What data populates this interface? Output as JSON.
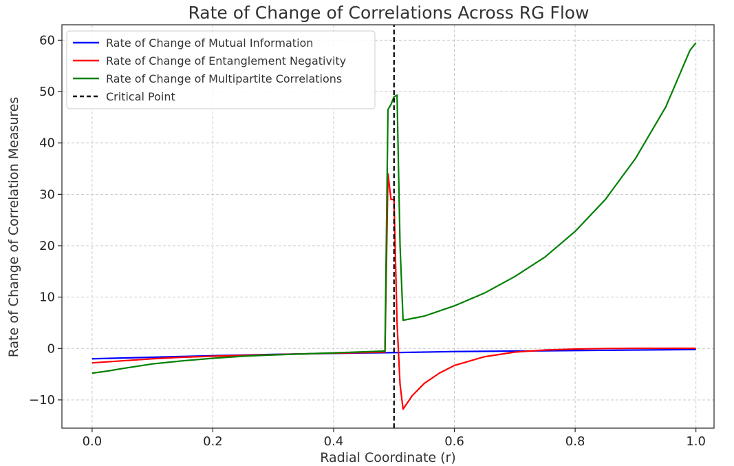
{
  "chart_data": {
    "type": "line",
    "title": "Rate of Change of Correlations Across RG Flow",
    "xlabel": "Radial Coordinate (r)",
    "ylabel": "Rate of Change of Correlation Measures",
    "xlim": [
      -0.05,
      1.03
    ],
    "ylim": [
      -15.5,
      63
    ],
    "xticks": [
      0.0,
      0.2,
      0.4,
      0.6,
      0.8,
      1.0
    ],
    "xtick_labels": [
      "0.0",
      "0.2",
      "0.4",
      "0.6",
      "0.8",
      "1.0"
    ],
    "yticks": [
      -10,
      0,
      10,
      20,
      30,
      40,
      50,
      60
    ],
    "ytick_labels": [
      "−10",
      "0",
      "10",
      "20",
      "30",
      "40",
      "50",
      "60"
    ],
    "grid": true,
    "legend_position": "top-left",
    "series": [
      {
        "name": "Rate of Change of Mutual Information",
        "color": "#0000ff",
        "x": [
          0.0,
          0.1,
          0.2,
          0.3,
          0.4,
          0.5,
          0.6,
          0.7,
          0.8,
          0.9,
          1.0
        ],
        "y": [
          -2.0,
          -1.7,
          -1.4,
          -1.15,
          -0.95,
          -0.8,
          -0.6,
          -0.5,
          -0.4,
          -0.3,
          -0.2
        ]
      },
      {
        "name": "Rate of Change of Entanglement Negativity",
        "color": "#ff0000",
        "x": [
          0.0,
          0.05,
          0.1,
          0.15,
          0.2,
          0.25,
          0.3,
          0.35,
          0.4,
          0.45,
          0.485,
          0.49,
          0.495,
          0.5,
          0.505,
          0.51,
          0.515,
          0.53,
          0.55,
          0.575,
          0.6,
          0.65,
          0.7,
          0.75,
          0.8,
          0.85,
          0.9,
          0.95,
          1.0
        ],
        "y": [
          -2.8,
          -2.4,
          -2.0,
          -1.7,
          -1.5,
          -1.35,
          -1.2,
          -1.05,
          -0.9,
          -0.8,
          -0.7,
          34.0,
          29.0,
          29.0,
          5.0,
          -7.0,
          -11.8,
          -9.2,
          -6.8,
          -4.8,
          -3.3,
          -1.6,
          -0.7,
          -0.3,
          -0.1,
          0.0,
          0.05,
          0.05,
          0.05
        ]
      },
      {
        "name": "Rate of Change of Multipartite Correlations",
        "color": "#008000",
        "x": [
          0.0,
          0.025,
          0.05,
          0.1,
          0.15,
          0.2,
          0.25,
          0.3,
          0.35,
          0.4,
          0.45,
          0.485,
          0.49,
          0.495,
          0.5,
          0.505,
          0.51,
          0.515,
          0.55,
          0.6,
          0.65,
          0.7,
          0.75,
          0.8,
          0.85,
          0.9,
          0.95,
          0.99,
          1.0
        ],
        "y": [
          -4.8,
          -4.4,
          -3.9,
          -3.0,
          -2.4,
          -1.9,
          -1.5,
          -1.25,
          -1.05,
          -0.85,
          -0.65,
          -0.5,
          46.5,
          47.5,
          49.0,
          49.3,
          20.0,
          5.5,
          6.3,
          8.3,
          10.8,
          14.0,
          17.8,
          22.8,
          29.0,
          37.0,
          47.0,
          58.0,
          59.5
        ]
      },
      {
        "name": "Critical Point",
        "color": "#000000",
        "style": "dashed",
        "x": [
          0.5,
          0.5
        ],
        "y": [
          -15.5,
          63
        ]
      }
    ]
  }
}
